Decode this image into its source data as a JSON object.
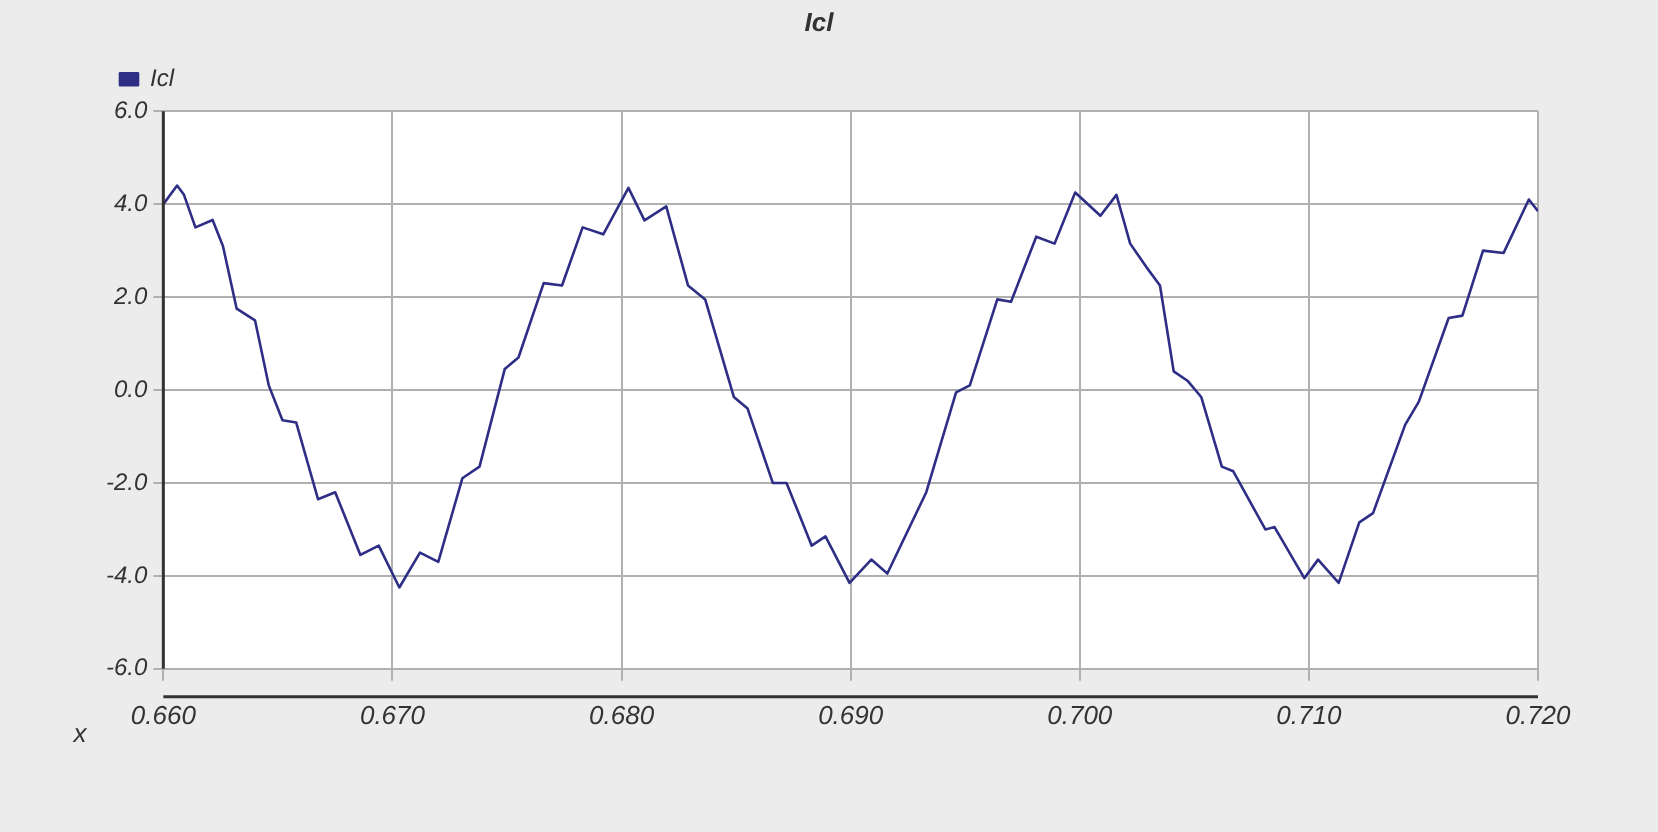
{
  "chart_data": {
    "type": "line",
    "title": "Icl",
    "xlabel": "x",
    "legend": "top left",
    "grid": true,
    "marker": "none",
    "line_style": "solid",
    "xlim": [
      0.66,
      0.72
    ],
    "xticks": [
      {
        "value": 0.66,
        "label": "0.660"
      },
      {
        "value": 0.67,
        "label": "0.670"
      },
      {
        "value": 0.68,
        "label": "0.680"
      },
      {
        "value": 0.69,
        "label": "0.690"
      },
      {
        "value": 0.7,
        "label": "0.700"
      },
      {
        "value": 0.71,
        "label": "0.710"
      },
      {
        "value": 0.72,
        "label": "0.720"
      }
    ],
    "ylim": [
      -6,
      6
    ],
    "yticks": [
      {
        "value": -6,
        "label": "-6.0"
      },
      {
        "value": -4,
        "label": "-4.0"
      },
      {
        "value": -2,
        "label": "-2.0"
      },
      {
        "value": 0,
        "label": "0.0"
      },
      {
        "value": 2,
        "label": "2.0"
      },
      {
        "value": 4,
        "label": "4.0"
      },
      {
        "value": 6,
        "label": "6.0"
      }
    ],
    "series": [
      {
        "name": "Icl",
        "color": "#2e2e86",
        "x": [
          0.66,
          0.6606,
          0.6609,
          0.6614,
          0.66215,
          0.6626,
          0.6632,
          0.664,
          0.6646,
          0.6652,
          0.6658,
          0.66675,
          0.6675,
          0.6686,
          0.6694,
          0.6703,
          0.6712,
          0.672,
          0.67305,
          0.6738,
          0.6749,
          0.6755,
          0.6766,
          0.6774,
          0.6783,
          0.6792,
          0.6803,
          0.681,
          0.68195,
          0.6829,
          0.68365,
          0.6849,
          0.6855,
          0.6866,
          0.6872,
          0.6883,
          0.6889,
          0.68995,
          0.6909,
          0.6916,
          0.6933,
          0.6946,
          0.6952,
          0.6964,
          0.697,
          0.6981,
          0.6989,
          0.6998,
          0.7009,
          0.7016,
          0.7022,
          0.7029,
          0.7035,
          0.7041,
          0.7047,
          0.7053,
          0.7062,
          0.7067,
          0.7081,
          0.7085,
          0.7098,
          0.7104,
          0.7113,
          0.7122,
          0.7128,
          0.7142,
          0.7148,
          0.7161,
          0.7167,
          0.7176,
          0.7185,
          0.7196,
          0.72
        ],
        "values": [
          4.0,
          4.4,
          4.2,
          3.5,
          3.66,
          3.1,
          1.75,
          1.5,
          0.1,
          -0.65,
          -0.7,
          -2.35,
          -2.2,
          -3.55,
          -3.35,
          -4.25,
          -3.5,
          -3.7,
          -1.9,
          -1.65,
          0.45,
          0.7,
          2.3,
          2.25,
          3.5,
          3.35,
          4.35,
          3.65,
          3.95,
          2.25,
          1.95,
          -0.15,
          -0.4,
          -2.0,
          -2.0,
          -3.35,
          -3.15,
          -4.15,
          -3.65,
          -3.95,
          -2.2,
          -0.05,
          0.1,
          1.95,
          1.9,
          3.3,
          3.15,
          4.25,
          3.75,
          4.2,
          3.15,
          2.65,
          2.25,
          0.4,
          0.2,
          -0.15,
          -1.65,
          -1.75,
          -3.0,
          -2.95,
          -4.05,
          -3.65,
          -4.15,
          -2.85,
          -2.65,
          -0.75,
          -0.25,
          1.55,
          1.6,
          3.0,
          2.95,
          4.1,
          3.85
        ]
      }
    ]
  }
}
